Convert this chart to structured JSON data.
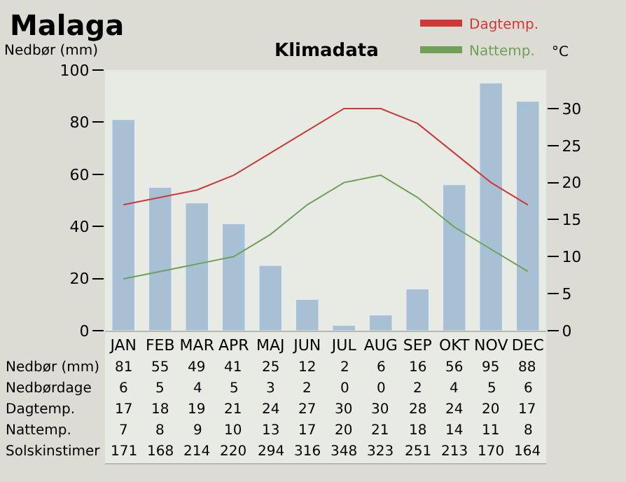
{
  "chart_data": {
    "type": "bar",
    "title": "Malaga",
    "subtitle": "Klimadata",
    "ylabel": "Nedbør (mm)",
    "y2label": "°C",
    "categories": [
      "JAN",
      "FEB",
      "MAR",
      "APR",
      "MAJ",
      "JUN",
      "JUL",
      "AUG",
      "SEP",
      "OKT",
      "NOV",
      "DEC"
    ],
    "series": [
      {
        "name": "Nedbør (mm)",
        "color": "#a8c0d4",
        "values": [
          81,
          55,
          49,
          41,
          25,
          12,
          2,
          6,
          16,
          56,
          95,
          88
        ]
      },
      {
        "name": "Dagtemp.",
        "type": "line",
        "axis": "y2",
        "color": "#d03838",
        "values": [
          17,
          18,
          19,
          21,
          24,
          27,
          30,
          30,
          28,
          24,
          20,
          17
        ]
      },
      {
        "name": "Nattemp.",
        "type": "line",
        "axis": "y2",
        "color": "#70a058",
        "values": [
          7,
          8,
          9,
          10,
          13,
          17,
          20,
          21,
          18,
          14,
          11,
          8
        ]
      }
    ],
    "annotations": [
      "Nedbørdage",
      "6",
      "5",
      "4",
      "5",
      "3",
      "2",
      "0",
      "0",
      "2",
      "4",
      "5",
      "6",
      "Solskinstimer",
      "171",
      "168",
      "214",
      "220",
      "294",
      "316",
      "348",
      "323",
      "251",
      "213",
      "170",
      "164"
    ],
    "ylim": [
      0,
      100
    ],
    "yticks": [
      0,
      20,
      40,
      60,
      80,
      100
    ],
    "y2lim": [
      0,
      35.2
    ],
    "y2ticks": [
      0,
      5,
      10,
      15,
      20,
      25,
      30
    ],
    "data_labels": true,
    "grid": false,
    "legend": "top right",
    "marker": "none",
    "line_style": "solid"
  }
}
